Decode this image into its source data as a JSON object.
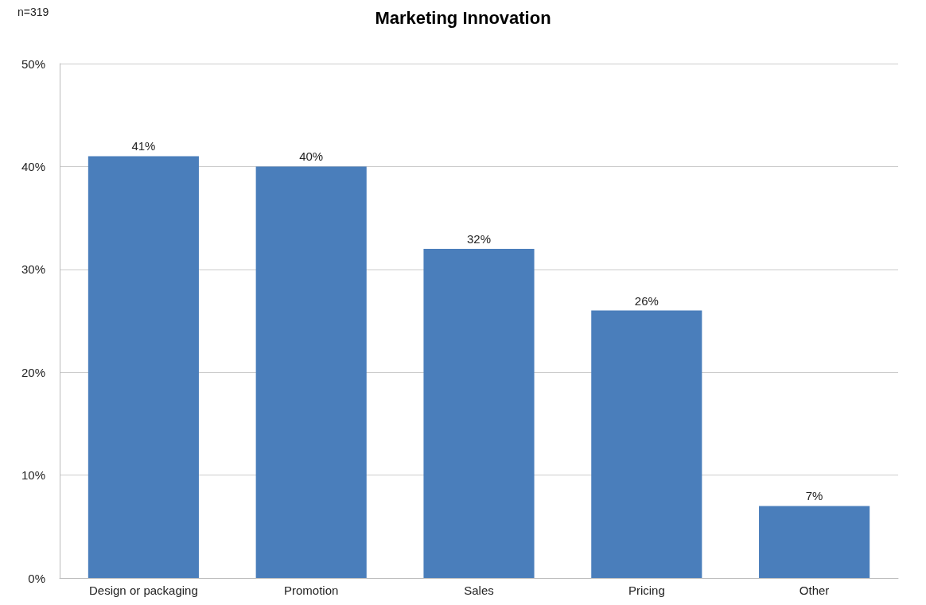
{
  "chart_data": {
    "type": "bar",
    "title": "Marketing Innovation",
    "annotations": [
      "n=319"
    ],
    "categories": [
      "Design or packaging",
      "Promotion",
      "Sales",
      "Pricing",
      "Other"
    ],
    "values": [
      41,
      40,
      32,
      26,
      7
    ],
    "color": "#4a7ebb",
    "value_labels": [
      "41%",
      "40%",
      "32%",
      "26%",
      "7%"
    ],
    "ylim": [
      0,
      50
    ],
    "yticks": [
      {
        "value": 0,
        "label": "0%"
      },
      {
        "value": 10,
        "label": "10%"
      },
      {
        "value": 20,
        "label": "20%"
      },
      {
        "value": 30,
        "label": "30%"
      },
      {
        "value": 40,
        "label": "40%"
      },
      {
        "value": 50,
        "label": "50%"
      }
    ],
    "grid": "y"
  }
}
